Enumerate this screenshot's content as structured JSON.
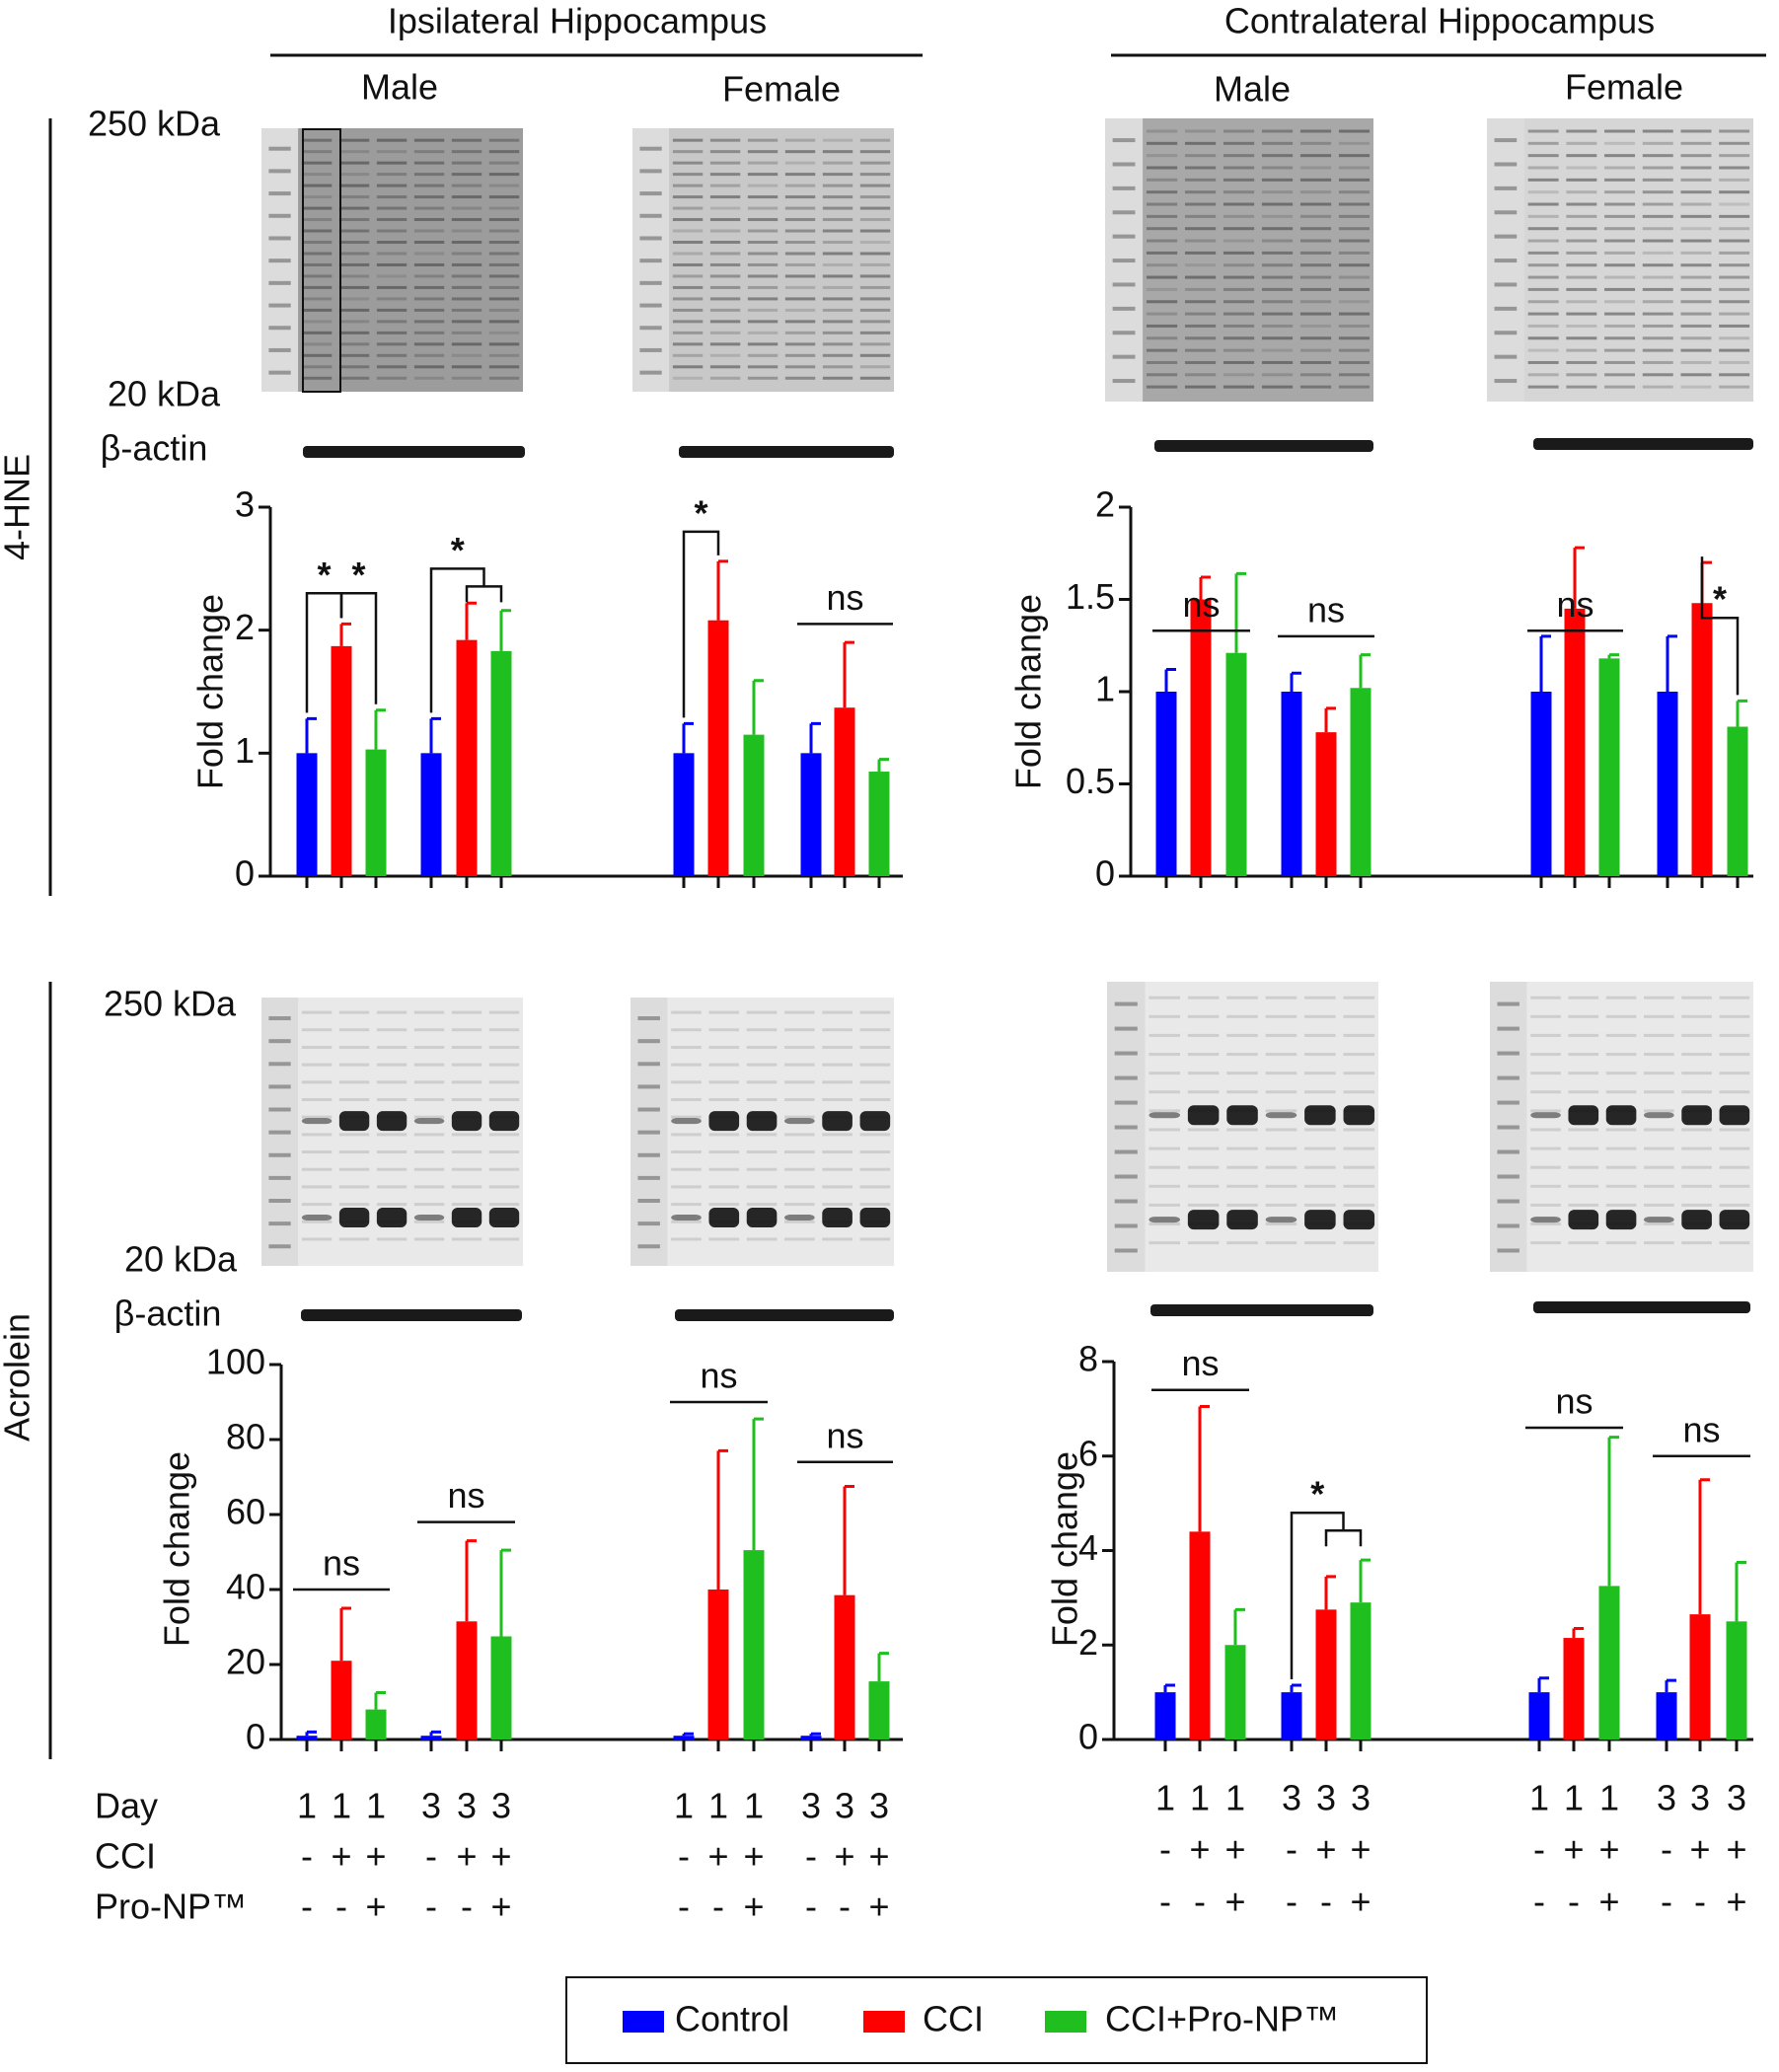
{
  "figure": {
    "columns": [
      {
        "title": "Ipsilateral Hippocampus",
        "sexes": [
          "Male",
          "Female"
        ]
      },
      {
        "title": "Contralateral Hippocampus",
        "sexes": [
          "Male",
          "Female"
        ]
      }
    ],
    "rows": [
      "4-HNE",
      "Acrolein"
    ],
    "blot_labels": {
      "high": "250 kDa",
      "low": "20 kDa",
      "loading": "β-actin"
    },
    "conditions": [
      {
        "label": "Day",
        "values": [
          1,
          1,
          1,
          3,
          3,
          3,
          1,
          1,
          1,
          3,
          3,
          3
        ]
      },
      {
        "label": "CCI",
        "values": [
          "-",
          "+",
          "+",
          "-",
          "+",
          "+",
          "-",
          "+",
          "+",
          "-",
          "+",
          "+"
        ]
      },
      {
        "label": "Pro-NP™",
        "values": [
          "-",
          "-",
          "+",
          "-",
          "-",
          "+",
          "-",
          "-",
          "+",
          "-",
          "-",
          "+"
        ]
      }
    ]
  },
  "chart_data": [
    {
      "type": "bar",
      "ylabel": "Fold change",
      "ylim": [
        0,
        3
      ],
      "yticks": [
        0,
        1,
        2,
        3
      ],
      "series": [
        {
          "name": "Control",
          "color": "#0000ff",
          "values": [
            1,
            1,
            1,
            1
          ],
          "errors": [
            0.28,
            0.28,
            0.24,
            0.24
          ]
        },
        {
          "name": "CCI",
          "color": "#ff0000",
          "values": [
            1.87,
            1.92,
            2.08,
            1.37
          ],
          "errors": [
            0.18,
            0.3,
            0.48,
            0.53
          ]
        },
        {
          "name": "CCI+Pro-NP™",
          "color": "#1fbf1f",
          "values": [
            1.03,
            1.83,
            1.15,
            0.85
          ],
          "errors": [
            0.32,
            0.33,
            0.44,
            0.1
          ]
        }
      ],
      "annotations": [
        "*",
        "*",
        "*",
        "*",
        "ns"
      ]
    },
    {
      "type": "bar",
      "ylabel": "Fold change",
      "ylim": [
        0,
        2
      ],
      "yticks": [
        0,
        0.5,
        1,
        1.5,
        2
      ],
      "series": [
        {
          "name": "Control",
          "color": "#0000ff",
          "values": [
            1,
            1,
            1,
            1
          ],
          "errors": [
            0.12,
            0.1,
            0.3,
            0.3
          ]
        },
        {
          "name": "CCI",
          "color": "#ff0000",
          "values": [
            1.5,
            0.78,
            1.45,
            1.48
          ],
          "errors": [
            0.12,
            0.13,
            0.33,
            0.22
          ]
        },
        {
          "name": "CCI+Pro-NP™",
          "color": "#1fbf1f",
          "values": [
            1.21,
            1.02,
            1.18,
            0.81
          ],
          "errors": [
            0.43,
            0.18,
            0.02,
            0.14
          ]
        }
      ],
      "annotations": [
        "ns",
        "ns",
        "ns",
        "*"
      ]
    },
    {
      "type": "bar",
      "ylabel": "Fold change",
      "ylim": [
        0,
        100
      ],
      "yticks": [
        0,
        20,
        40,
        60,
        80,
        100
      ],
      "series": [
        {
          "name": "Control",
          "color": "#0000ff",
          "values": [
            1,
            1,
            1,
            1
          ],
          "errors": [
            1,
            1,
            0.5,
            0.5
          ]
        },
        {
          "name": "CCI",
          "color": "#ff0000",
          "values": [
            21,
            31.5,
            40,
            38.5
          ],
          "errors": [
            14,
            21.5,
            37,
            29
          ]
        },
        {
          "name": "CCI+Pro-NP™",
          "color": "#1fbf1f",
          "values": [
            8,
            27.5,
            50.5,
            15.5
          ],
          "errors": [
            4.5,
            23,
            35,
            7.5
          ]
        }
      ],
      "annotations": [
        "ns",
        "ns",
        "ns",
        "ns"
      ]
    },
    {
      "type": "bar",
      "ylabel": "Fold change",
      "ylim": [
        0,
        8
      ],
      "yticks": [
        0,
        2,
        4,
        6,
        8
      ],
      "series": [
        {
          "name": "Control",
          "color": "#0000ff",
          "values": [
            1,
            1,
            1,
            1
          ],
          "errors": [
            0.15,
            0.15,
            0.3,
            0.25
          ]
        },
        {
          "name": "CCI",
          "color": "#ff0000",
          "values": [
            4.4,
            2.75,
            2.15,
            2.65
          ],
          "errors": [
            2.65,
            0.7,
            0.2,
            2.85
          ]
        },
        {
          "name": "CCI+Pro-NP™",
          "color": "#1fbf1f",
          "values": [
            2.0,
            2.9,
            3.25,
            2.5
          ],
          "errors": [
            0.75,
            0.9,
            3.15,
            1.25
          ]
        }
      ],
      "annotations": [
        "ns",
        "*",
        "ns",
        "ns"
      ]
    }
  ]
}
